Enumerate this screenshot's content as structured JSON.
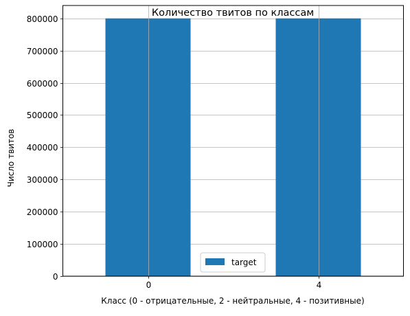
{
  "chart_data": {
    "type": "bar",
    "title": "Количество твитов по классам",
    "xlabel": "Класс (0 - отрицательные, 2 - нейтральные, 4 - позитивные)",
    "ylabel": "Число твитов",
    "categories": [
      "0",
      "4"
    ],
    "series": [
      {
        "name": "target",
        "values": [
          800000,
          800000
        ],
        "color": "#1f77b4"
      }
    ],
    "ylim": [
      0,
      840000
    ],
    "yticks": [
      0,
      100000,
      200000,
      300000,
      400000,
      500000,
      600000,
      700000,
      800000
    ],
    "grid": true,
    "legend_position": "lower-center"
  }
}
